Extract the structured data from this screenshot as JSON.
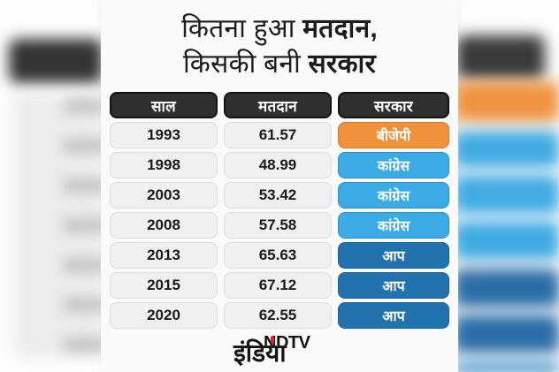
{
  "title": {
    "line1_normal": "कितना हुआ ",
    "line1_bold": "मतदान,",
    "line2_normal": "किसकी बनी ",
    "line2_bold": "सरकार"
  },
  "table": {
    "headers": [
      "साल",
      "मतदान",
      "सरकार"
    ],
    "rows": [
      {
        "year": "1993",
        "turnout": "61.57",
        "party": "बीजेपी",
        "party_color": "#f0923c"
      },
      {
        "year": "1998",
        "turnout": "48.99",
        "party": "कांग्रेस",
        "party_color": "#3aabe4"
      },
      {
        "year": "2003",
        "turnout": "53.42",
        "party": "कांग्रेस",
        "party_color": "#3aabe4"
      },
      {
        "year": "2008",
        "turnout": "57.58",
        "party": "कांग्रेस",
        "party_color": "#3aabe4"
      },
      {
        "year": "2013",
        "turnout": "65.63",
        "party": "आप",
        "party_color": "#2272ae"
      },
      {
        "year": "2015",
        "turnout": "67.12",
        "party": "आप",
        "party_color": "#2272ae"
      },
      {
        "year": "2020",
        "turnout": "62.55",
        "party": "आप",
        "party_color": "#2272ae"
      }
    ]
  },
  "logo": {
    "brand": "NDTV",
    "sub": "इंडिया"
  },
  "colors": {
    "header_bg": "#2f2f2f",
    "bjp": "#f0923c",
    "congress": "#3aabe4",
    "aap": "#2272ae",
    "logo_red": "#d9232e"
  },
  "chart_data": {
    "type": "table",
    "title": "कितना हुआ मतदान, किसकी बनी सरकार",
    "columns": [
      "साल",
      "मतदान",
      "सरकार"
    ],
    "rows": [
      [
        "1993",
        61.57,
        "बीजेपी"
      ],
      [
        "1998",
        48.99,
        "कांग्रेस"
      ],
      [
        "2003",
        53.42,
        "कांग्रेस"
      ],
      [
        "2008",
        57.58,
        "कांग्रेस"
      ],
      [
        "2013",
        65.63,
        "आप"
      ],
      [
        "2015",
        67.12,
        "आप"
      ],
      [
        "2020",
        62.55,
        "आप"
      ]
    ]
  }
}
